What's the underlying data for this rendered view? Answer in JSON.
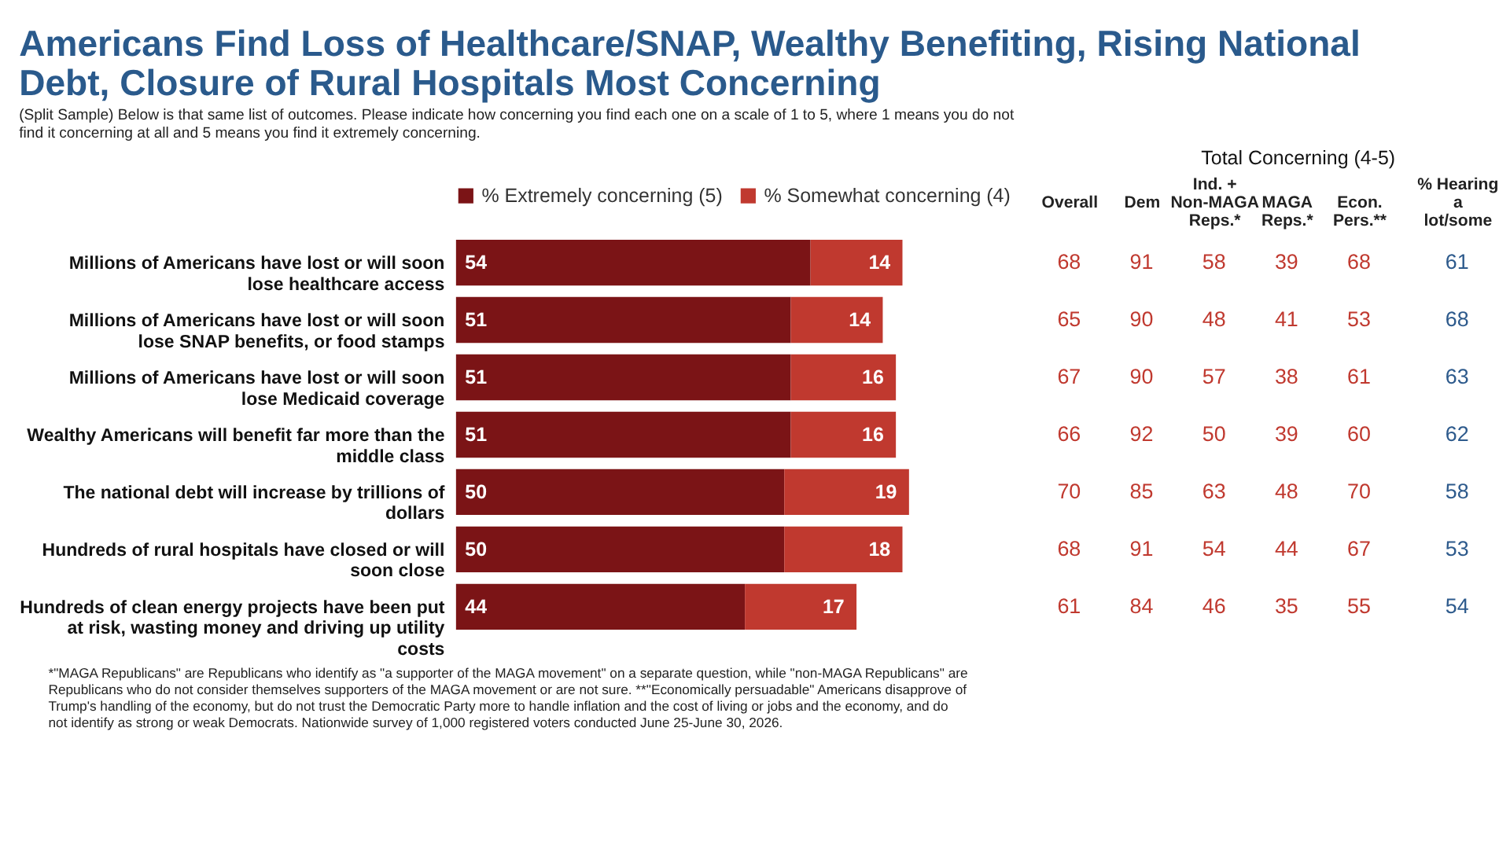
{
  "chart_data": [
    {
      "type": "bar",
      "orientation": "horizontal",
      "stacked": true,
      "data_labels": true,
      "legend": "top",
      "title": "Americans Find Loss of Healthcare/SNAP, Wealthy Benefiting, Rising National Debt, Closure of Rural Hospitals Most Concerning",
      "subtitle": "(Split Sample) Below is that same list of outcomes. Please indicate how concerning you find each one on a scale of 1 to 5, where 1 means you do not find it concerning at all and 5 means you find it extremely concerning.",
      "categories": [
        "Millions of Americans have lost or will soon lose healthcare access",
        "Millions of Americans have lost or will soon lose SNAP benefits, or food stamps",
        "Millions of Americans have lost or will soon lose Medicaid coverage",
        "Wealthy Americans will benefit far more than the middle class",
        "The national debt will increase by trillions of dollars",
        "Hundreds of rural hospitals have closed or will soon close",
        "Hundreds of clean energy projects have been put at risk, wasting money and driving up utility costs"
      ],
      "series": [
        {
          "name": "% Extremely concerning (5)",
          "color": "#7b1416",
          "values": [
            54,
            51,
            51,
            51,
            50,
            50,
            44
          ]
        },
        {
          "name": "% Somewhat concerning (4)",
          "color": "#c0392f",
          "values": [
            14,
            14,
            16,
            16,
            19,
            18,
            17
          ]
        }
      ],
      "annotations": [
        "*\"MAGA Republicans\" are Republicans who identify as \"a supporter of the MAGA movement\" on a separate question, while \"non-MAGA Republicans\" are Republicans who do not consider themselves supporters of the MAGA movement or are not sure. **\"Economically persuadable\" Americans disapprove of Trump's handling of the economy, but do not trust the Democratic Party more to handle inflation and the cost of living or jobs and the economy, and do not identify as strong or weak Democrats. Nationwide survey of 1,000 registered voters conducted June 25-June 30, 2026."
      ]
    },
    {
      "type": "heatmap",
      "title": "Total Concerning (4-5)",
      "data_labels": true,
      "categories": [
        "Overall",
        "Dem",
        "Ind. + Non-MAGA Reps.*",
        "MAGA Reps.*",
        "Econ. Pers.**"
      ],
      "y_categories": [
        null,
        null,
        null,
        null,
        null,
        null,
        null
      ],
      "colors": [
        "#c0392f",
        "#c0392f",
        "#c0392f",
        "#c0392f",
        "#c0392f"
      ],
      "cells": [
        [
          68,
          91,
          58,
          39,
          68
        ],
        [
          65,
          90,
          48,
          41,
          53
        ],
        [
          67,
          90,
          57,
          38,
          61
        ],
        [
          66,
          92,
          50,
          39,
          60
        ],
        [
          70,
          85,
          63,
          48,
          70
        ],
        [
          68,
          91,
          54,
          44,
          67
        ],
        [
          61,
          84,
          46,
          35,
          55
        ]
      ]
    },
    {
      "type": "heatmap",
      "data_labels": true,
      "categories": [
        "% Hearing a lot/some"
      ],
      "y_categories": [
        null,
        null,
        null,
        null,
        null,
        null,
        null
      ],
      "colors": [
        "#2d5a8c"
      ],
      "cells": [
        [
          61
        ],
        [
          68
        ],
        [
          63
        ],
        [
          62
        ],
        [
          58
        ],
        [
          53
        ],
        [
          54
        ]
      ]
    }
  ]
}
